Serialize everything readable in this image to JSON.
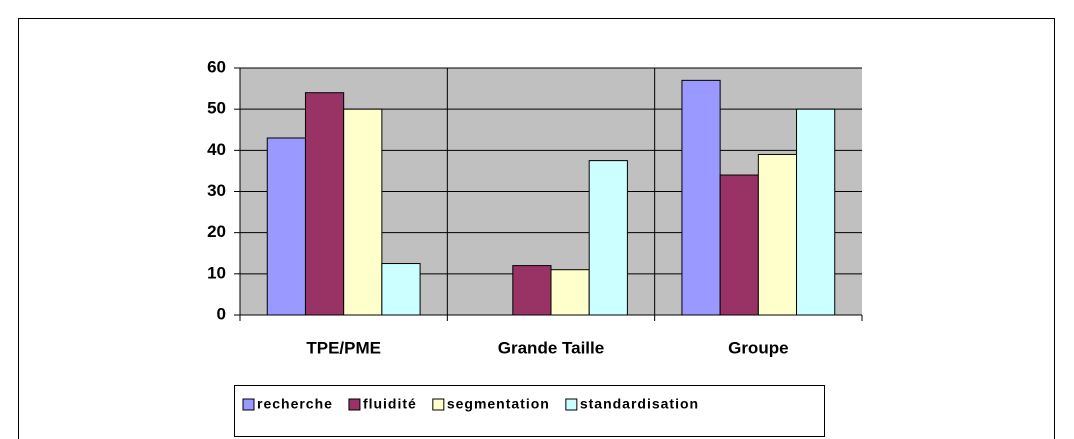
{
  "chart_data": {
    "type": "bar",
    "categories": [
      "TPE/PME",
      "Grande Taille",
      "Groupe"
    ],
    "series": [
      {
        "name": "recherche",
        "color": "#9999ff",
        "values": [
          43,
          0,
          57
        ]
      },
      {
        "name": "fluidité",
        "color": "#993366",
        "values": [
          54,
          12,
          34
        ]
      },
      {
        "name": "segmentation",
        "color": "#ffffcc",
        "values": [
          50,
          11,
          39
        ]
      },
      {
        "name": "standardisation",
        "color": "#ccffff",
        "values": [
          12.5,
          37.5,
          50
        ]
      }
    ],
    "ylim": [
      0,
      60
    ],
    "yticks": [
      0,
      10,
      20,
      30,
      40,
      50,
      60
    ],
    "grid": true,
    "plot_background": "#c0c0c0",
    "legend": "bottom"
  }
}
